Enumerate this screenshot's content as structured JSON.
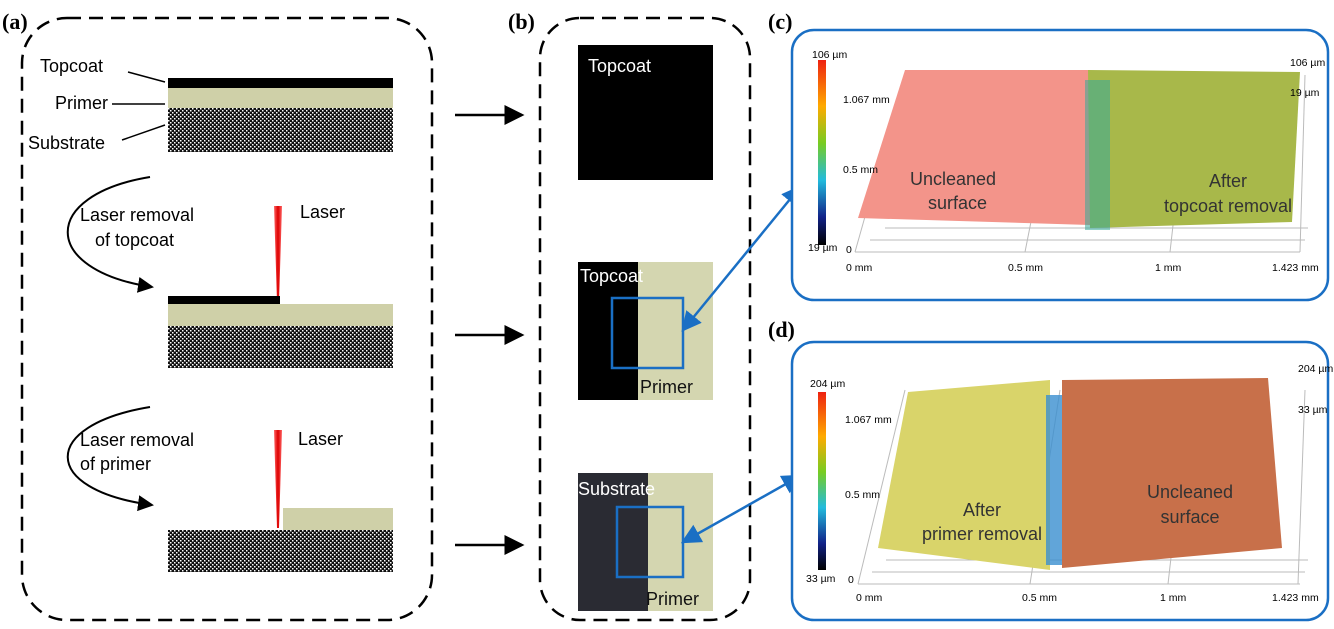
{
  "panels": {
    "a": {
      "label": "(a)",
      "layers": [
        "Topcoat",
        "Primer",
        "Substrate"
      ],
      "steps": [
        {
          "text": [
            "Laser removal",
            "of topcoat"
          ],
          "laser": "Laser"
        },
        {
          "text": [
            "Laser removal",
            "of primer"
          ],
          "laser": "Laser"
        }
      ]
    },
    "b": {
      "label": "(b)",
      "images": [
        {
          "labels": [
            "Topcoat"
          ]
        },
        {
          "labels": [
            "Topcoat",
            "Primer"
          ]
        },
        {
          "labels": [
            "Substrate",
            "Primer"
          ]
        }
      ]
    },
    "c": {
      "label": "(c)",
      "colorbar": [
        "106 µm",
        "19 µm"
      ],
      "y_axis": [
        "1.067 mm",
        "0.5 mm",
        "0"
      ],
      "x_axis": [
        "0 mm",
        "0.5 mm",
        "1 mm",
        "1.423 mm"
      ],
      "z_axis": [
        "106 µm",
        "19 µm"
      ],
      "regions": [
        [
          "Uncleaned",
          "surface"
        ],
        [
          "After",
          "topcoat removal"
        ]
      ]
    },
    "d": {
      "label": "(d)",
      "colorbar": [
        "204 µm",
        "33 µm"
      ],
      "y_axis": [
        "1.067 mm",
        "0.5 mm",
        "0"
      ],
      "x_axis": [
        "0 mm",
        "0.5 mm",
        "1 mm",
        "1.423 mm"
      ],
      "z_axis": [
        "204 µm",
        "33 µm"
      ],
      "regions": [
        [
          "After",
          "primer removal"
        ],
        [
          "Uncleaned",
          "surface"
        ]
      ]
    }
  }
}
